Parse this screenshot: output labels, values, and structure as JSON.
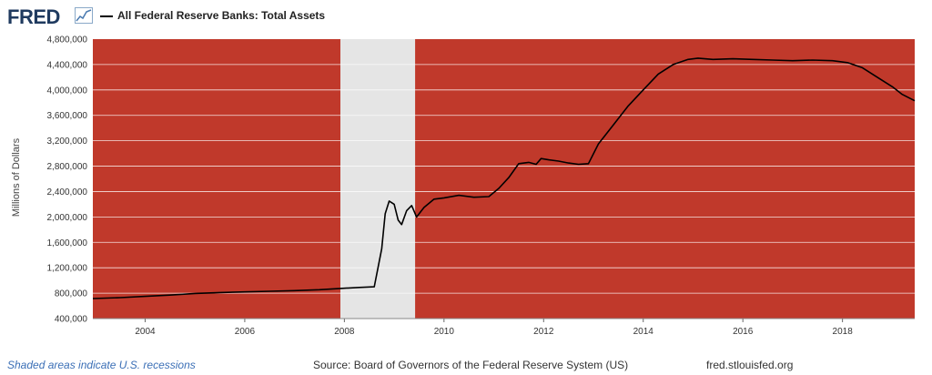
{
  "brand": "FRED",
  "legend_label": "All Federal Reserve Banks: Total Assets",
  "note": "Shaded areas indicate U.S. recessions",
  "source": "Source: Board of Governors of the Federal Reserve System (US)",
  "site": "fred.stlouisfed.org",
  "colors": {
    "plot_bg": "#c0392b",
    "recession": "#e5e5e5",
    "line": "#000000",
    "grid": "#ffffff"
  },
  "chart_data": {
    "type": "line",
    "title": "All Federal Reserve Banks: Total Assets",
    "ylabel": "Millions of Dollars",
    "xlabel": "",
    "xlim": [
      2002.95,
      2019.45
    ],
    "ylim": [
      400000,
      4800000
    ],
    "x_ticks": [
      2004,
      2006,
      2008,
      2010,
      2012,
      2014,
      2016,
      2018
    ],
    "y_ticks": [
      400000,
      800000,
      1200000,
      1600000,
      2000000,
      2400000,
      2800000,
      3200000,
      3600000,
      4000000,
      4400000,
      4800000
    ],
    "y_tick_labels": [
      "400,000",
      "800,000",
      "1,200,000",
      "1,600,000",
      "2,000,000",
      "2,400,000",
      "2,800,000",
      "3,200,000",
      "3,600,000",
      "4,000,000",
      "4,400,000",
      "4,800,000"
    ],
    "grid": true,
    "recessions": [
      [
        2007.92,
        2009.42
      ]
    ],
    "series": [
      {
        "name": "All Federal Reserve Banks: Total Assets",
        "x": [
          2002.95,
          2003.5,
          2004.0,
          2004.5,
          2005.0,
          2005.5,
          2006.0,
          2006.5,
          2007.0,
          2007.5,
          2007.92,
          2008.3,
          2008.6,
          2008.75,
          2008.82,
          2008.9,
          2009.0,
          2009.08,
          2009.15,
          2009.25,
          2009.35,
          2009.45,
          2009.6,
          2009.8,
          2010.0,
          2010.3,
          2010.6,
          2010.9,
          2011.1,
          2011.3,
          2011.5,
          2011.7,
          2011.85,
          2011.95,
          2012.1,
          2012.3,
          2012.5,
          2012.7,
          2012.9,
          2013.1,
          2013.4,
          2013.7,
          2014.0,
          2014.3,
          2014.6,
          2014.9,
          2015.1,
          2015.4,
          2015.8,
          2016.2,
          2016.6,
          2017.0,
          2017.4,
          2017.8,
          2018.1,
          2018.4,
          2018.7,
          2019.0,
          2019.2,
          2019.45
        ],
        "y": [
          715000,
          730000,
          750000,
          770000,
          795000,
          810000,
          820000,
          830000,
          840000,
          855000,
          875000,
          890000,
          900000,
          1500000,
          2050000,
          2250000,
          2200000,
          1950000,
          1880000,
          2100000,
          2180000,
          2000000,
          2150000,
          2280000,
          2300000,
          2340000,
          2310000,
          2320000,
          2450000,
          2620000,
          2840000,
          2860000,
          2830000,
          2920000,
          2900000,
          2880000,
          2850000,
          2830000,
          2840000,
          3150000,
          3450000,
          3750000,
          4000000,
          4250000,
          4400000,
          4480000,
          4500000,
          4480000,
          4490000,
          4480000,
          4470000,
          4460000,
          4470000,
          4460000,
          4430000,
          4350000,
          4200000,
          4050000,
          3930000,
          3830000
        ]
      }
    ]
  }
}
